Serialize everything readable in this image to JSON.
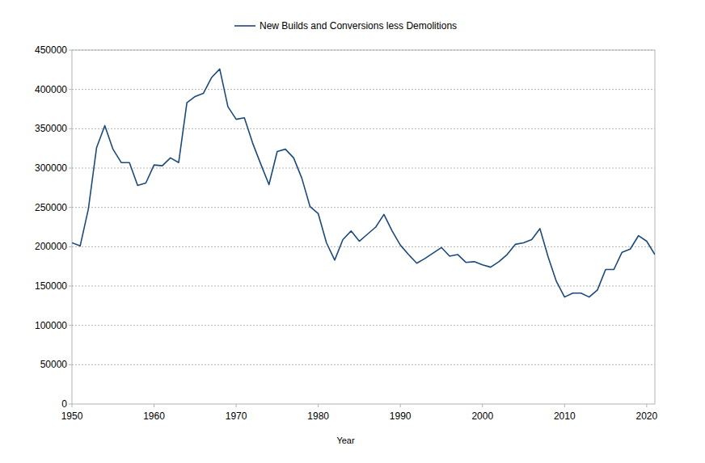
{
  "chart_data": {
    "type": "line",
    "x_label": "Year",
    "x": [
      1950,
      1951,
      1952,
      1953,
      1954,
      1955,
      1956,
      1957,
      1958,
      1959,
      1960,
      1961,
      1962,
      1963,
      1964,
      1965,
      1966,
      1967,
      1968,
      1969,
      1970,
      1971,
      1972,
      1973,
      1974,
      1975,
      1976,
      1977,
      1978,
      1979,
      1980,
      1981,
      1982,
      1983,
      1984,
      1985,
      1986,
      1987,
      1988,
      1989,
      1990,
      1991,
      1992,
      1993,
      1994,
      1995,
      1996,
      1997,
      1998,
      1999,
      2000,
      2001,
      2002,
      2003,
      2004,
      2005,
      2006,
      2007,
      2008,
      2009,
      2010,
      2011,
      2012,
      2013,
      2014,
      2015,
      2016,
      2017,
      2018,
      2019,
      2020,
      2021
    ],
    "series": [
      {
        "name": "New Builds and Conversions less Demolitions",
        "color": "#1c4a7a",
        "values": [
          205000,
          201000,
          248000,
          326000,
          354000,
          324000,
          307000,
          307000,
          278000,
          281000,
          304000,
          303000,
          313000,
          307000,
          383000,
          391000,
          395000,
          415000,
          426000,
          378000,
          362000,
          364000,
          332000,
          305000,
          279000,
          321000,
          324000,
          313000,
          287000,
          251000,
          242000,
          205000,
          183000,
          209000,
          220000,
          207000,
          216000,
          225000,
          241000,
          220000,
          202000,
          190000,
          179000,
          185000,
          192000,
          199000,
          188000,
          190000,
          180000,
          181000,
          177000,
          174000,
          181000,
          190000,
          203000,
          205000,
          209000,
          223000,
          187000,
          156000,
          136000,
          141000,
          141000,
          136000,
          145000,
          171000,
          171000,
          193000,
          197000,
          214000,
          207000,
          190000
        ]
      }
    ],
    "xlim": [
      1950,
      2021
    ],
    "xticks": [
      1950,
      1960,
      1970,
      1980,
      1990,
      2000,
      2010,
      2020
    ],
    "ylim": [
      0,
      450000
    ],
    "yticks": [
      0,
      50000,
      100000,
      150000,
      200000,
      250000,
      300000,
      350000,
      400000,
      450000
    ],
    "grid": true,
    "legend": "top"
  }
}
